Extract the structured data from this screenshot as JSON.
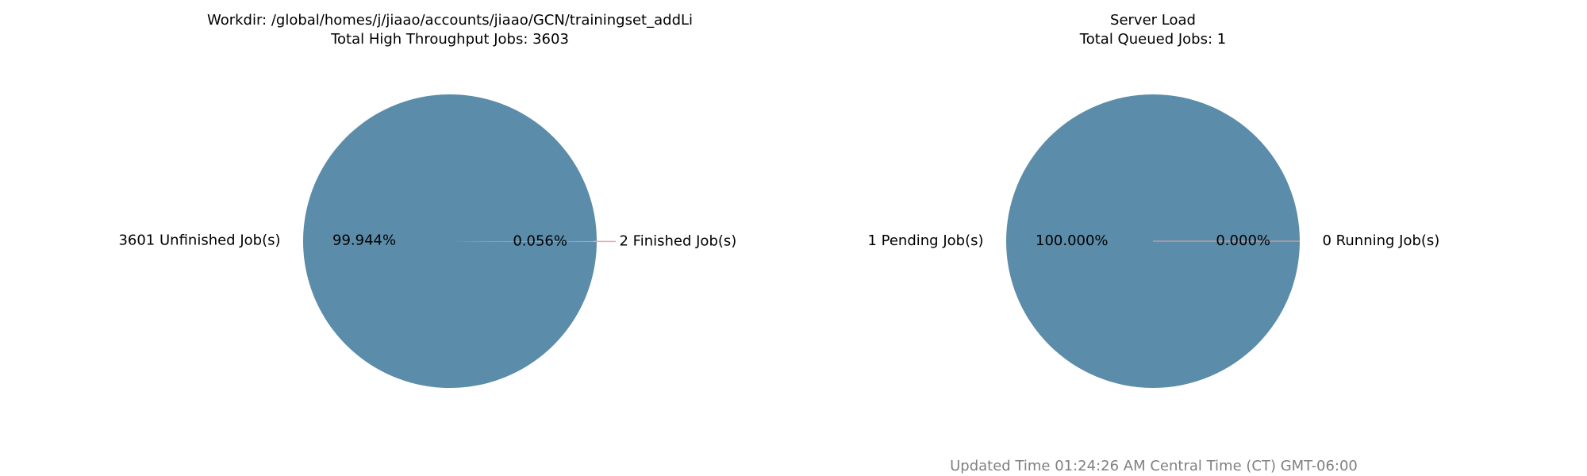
{
  "chart_data": [
    {
      "type": "pie",
      "title": "Workdir: /global/homes/j/jiaao/accounts/jiaao/GCN/trainingset_addLi",
      "subtitle": "Total High Throughput Jobs: 3603",
      "slices": [
        {
          "label": "3601 Unfinished Job(s)",
          "value": 3601,
          "pct_label": "99.944%",
          "color": "#5b8ca9"
        },
        {
          "label": "2 Finished Job(s)",
          "value": 2,
          "pct_label": "0.056%",
          "color": "#e8a6a6"
        }
      ]
    },
    {
      "type": "pie",
      "title": "Server Load",
      "subtitle": "Total Queued Jobs: 1",
      "slices": [
        {
          "label": "1 Pending Job(s)",
          "value": 1,
          "pct_label": "100.000%",
          "color": "#5b8ca9"
        },
        {
          "label": "0 Running Job(s)",
          "value": 0,
          "pct_label": "0.000%",
          "color": "#e8a6a6"
        }
      ]
    }
  ],
  "footer": {
    "updated": "Updated Time 01:24:26 AM Central Time (CT) GMT-06:00"
  }
}
